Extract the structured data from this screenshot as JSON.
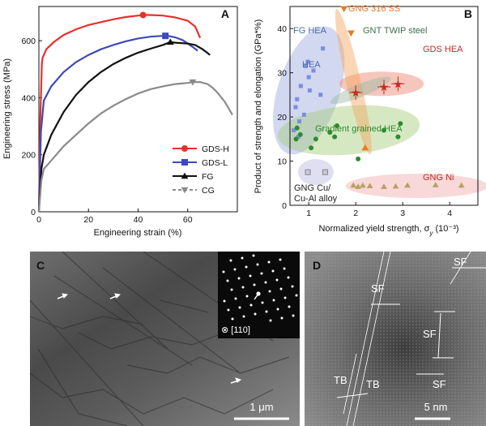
{
  "chart_data": [
    {
      "type": "line",
      "panel": "A",
      "xlabel": "Engineering strain (%)",
      "ylabel": "Engineering stress (MPa)",
      "xlim": [
        0,
        80
      ],
      "ylim": [
        0,
        720
      ],
      "xticks": [
        "0",
        "20",
        "40",
        "60"
      ],
      "yticks": [
        "0",
        "200",
        "400",
        "600"
      ],
      "legend_position": "bottom-right",
      "series": [
        {
          "name": "GDS-H",
          "color": "#e8302b",
          "marker": "circle",
          "x": [
            0,
            0.6,
            1.2,
            1.5,
            3,
            6,
            10,
            15,
            20,
            25,
            30,
            35,
            40,
            42,
            45,
            50,
            55,
            60,
            63,
            65
          ],
          "y": [
            0,
            330,
            520,
            540,
            570,
            595,
            620,
            640,
            655,
            665,
            675,
            683,
            688,
            690,
            690,
            688,
            682,
            670,
            650,
            610
          ],
          "peak": [
            42,
            690
          ]
        },
        {
          "name": "GDS-L",
          "color": "#3d4ab7",
          "marker": "square",
          "x": [
            0,
            0.8,
            2,
            5,
            10,
            15,
            20,
            25,
            30,
            35,
            40,
            45,
            50,
            52,
            55,
            58,
            60,
            62,
            64
          ],
          "y": [
            0,
            280,
            390,
            440,
            490,
            525,
            550,
            570,
            585,
            598,
            608,
            614,
            617,
            617,
            612,
            602,
            590,
            578,
            565
          ],
          "peak": [
            51,
            617
          ]
        },
        {
          "name": "FG",
          "color": "#111111",
          "marker": "triangle",
          "x": [
            0,
            1,
            2,
            5,
            10,
            15,
            20,
            25,
            30,
            35,
            40,
            45,
            50,
            53,
            55,
            60,
            63,
            66,
            69
          ],
          "y": [
            0,
            150,
            200,
            270,
            350,
            410,
            455,
            490,
            518,
            540,
            558,
            572,
            585,
            595,
            593,
            590,
            585,
            570,
            550
          ],
          "peak": [
            53,
            595
          ]
        },
        {
          "name": "CG",
          "color": "#8a8a8a",
          "marker": "triangle-down",
          "dashed_legend": true,
          "x": [
            0,
            1,
            2,
            5,
            10,
            15,
            20,
            25,
            30,
            35,
            40,
            45,
            50,
            55,
            60,
            62,
            65,
            68,
            70,
            72,
            75,
            78
          ],
          "y": [
            0,
            110,
            150,
            180,
            230,
            270,
            310,
            345,
            372,
            395,
            415,
            430,
            440,
            448,
            452,
            455,
            455,
            448,
            435,
            418,
            385,
            340
          ],
          "peak": [
            62,
            455
          ]
        }
      ]
    },
    {
      "type": "scatter",
      "panel": "B",
      "xlabel": "Normalized yield strength, σ",
      "xlabel_sub": "y",
      "xlabel_unit": " (10⁻³)",
      "ylabel": "Product of strength and elongation (GPa*%)",
      "xlim": [
        0.6,
        4.6
      ],
      "ylim": [
        0,
        45
      ],
      "xticks": [
        "1",
        "2",
        "3",
        "4"
      ],
      "yticks": [
        "0",
        "10",
        "20",
        "30",
        "40"
      ],
      "groups": [
        {
          "label": "FG HEA",
          "label_color": "#4a6aaa",
          "region_color": "#9aa8dd",
          "points": [
            [
              0.72,
              22.2
            ],
            [
              0.75,
              24
            ],
            [
              0.8,
              19
            ],
            [
              0.83,
              27
            ],
            [
              0.9,
              20.5
            ],
            [
              0.93,
              31.5
            ],
            [
              0.98,
              32.5
            ],
            [
              1.0,
              29
            ],
            [
              1.02,
              26
            ],
            [
              1.1,
              30.5
            ],
            [
              1.25,
              25
            ],
            [
              1.3,
              35.5
            ],
            [
              0.68,
              17
            ],
            [
              0.78,
              15.5
            ]
          ]
        },
        {
          "label": "HEA",
          "label_color": "#4a6aaa",
          "region_color": "#9aa8dd",
          "points": []
        },
        {
          "label": "GNG 316 SS",
          "label_color": "#e87a25",
          "region_color": "#f5a45a",
          "points": [
            [
              1.75,
              44.5
            ],
            [
              1.9,
              39
            ]
          ]
        },
        {
          "label": "GNT TWIP steel",
          "label_color": "#3d6e4a",
          "region_color": "#9ab8a0",
          "points": [
            [
              2.2,
              13
            ]
          ]
        },
        {
          "label": "GDS HEA",
          "label_color": "#c8281e",
          "region_color": "#e8806a",
          "points": [
            [
              2.0,
              25.5
            ],
            [
              2.6,
              26.8
            ],
            [
              2.9,
              27.5
            ]
          ]
        },
        {
          "label": "Gradient grained HEA",
          "label_color": "#2e8b2e",
          "region_color": "#a4cc78",
          "points": [
            [
              0.73,
              15
            ],
            [
              0.75,
              17.5
            ],
            [
              0.82,
              16
            ],
            [
              1.05,
              13
            ],
            [
              1.15,
              15
            ],
            [
              1.45,
              16.5
            ],
            [
              1.55,
              15.5
            ],
            [
              1.6,
              18
            ],
            [
              2.05,
              10.5
            ],
            [
              2.6,
              17
            ],
            [
              2.9,
              15.5
            ],
            [
              2.95,
              18.5
            ]
          ]
        },
        {
          "label": "GNG Cu/\nCu-Al alloy",
          "label_color": "#222222",
          "region_color": "#b8b8e0",
          "points": [
            [
              0.98,
              7.5
            ],
            [
              1.35,
              7.5
            ]
          ]
        },
        {
          "label": "GNG Ni",
          "label_color": "#c8281e",
          "region_color": "#f0a8a8",
          "points": [
            [
              1.95,
              4.5
            ],
            [
              2.05,
              4.2
            ],
            [
              2.15,
              4.5
            ],
            [
              2.3,
              4.4
            ],
            [
              2.6,
              4.2
            ],
            [
              2.85,
              4.3
            ],
            [
              3.1,
              4.5
            ],
            [
              3.7,
              4.6
            ],
            [
              4.25,
              4.5
            ]
          ]
        }
      ]
    }
  ],
  "panels": {
    "A": {
      "letter": "A"
    },
    "B": {
      "letter": "B"
    },
    "C": {
      "letter": "C",
      "diffraction_label": "⊗ [110]",
      "scale_bar": "1 μm"
    },
    "D": {
      "letter": "D",
      "labels": [
        "SF",
        "SF",
        "SF",
        "SF",
        "TB",
        "TB"
      ],
      "scale_bar": "5 nm"
    }
  }
}
